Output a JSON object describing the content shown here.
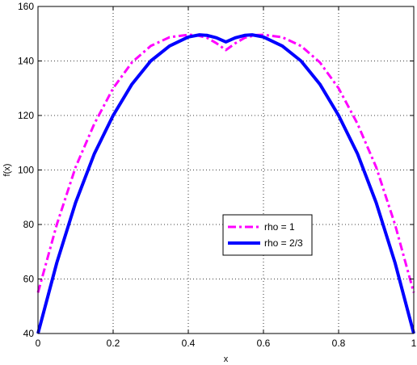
{
  "chart_data": {
    "type": "line",
    "title": "",
    "xlabel": "x",
    "ylabel": "f(x)",
    "xlim": [
      0,
      1
    ],
    "ylim": [
      40,
      160
    ],
    "xticks": [
      "0",
      "0.2",
      "0.4",
      "0.6",
      "0.8",
      "1"
    ],
    "yticks": [
      "40",
      "60",
      "80",
      "100",
      "120",
      "140",
      "160"
    ],
    "grid": true,
    "legend_position": "lower-center-right",
    "series": [
      {
        "name": "rho = 1",
        "color": "#ff00ff",
        "style": "dash-dot",
        "x": [
          0,
          0.05,
          0.1,
          0.15,
          0.2,
          0.25,
          0.3,
          0.35,
          0.4,
          0.42,
          0.45,
          0.475,
          0.5,
          0.525,
          0.55,
          0.58,
          0.6,
          0.65,
          0.7,
          0.75,
          0.8,
          0.85,
          0.9,
          0.95,
          1
        ],
        "y": [
          55,
          80,
          101,
          117,
          130,
          139.5,
          145.5,
          148.7,
          149.6,
          149.5,
          148.5,
          146.5,
          144,
          146.5,
          148.5,
          149.5,
          149.6,
          148.7,
          145.5,
          139.5,
          130,
          117,
          101,
          80,
          55
        ]
      },
      {
        "name": "rho = 2/3",
        "color": "#0000ff",
        "style": "solid",
        "x": [
          0,
          0.05,
          0.1,
          0.15,
          0.2,
          0.25,
          0.3,
          0.35,
          0.4,
          0.43,
          0.45,
          0.475,
          0.5,
          0.525,
          0.55,
          0.57,
          0.6,
          0.65,
          0.7,
          0.75,
          0.8,
          0.85,
          0.9,
          0.95,
          1
        ],
        "y": [
          40,
          66,
          88,
          106,
          120,
          131.5,
          140,
          145.5,
          148.8,
          149.6,
          149.4,
          148.5,
          147,
          148.5,
          149.4,
          149.6,
          148.8,
          145.5,
          140,
          131.5,
          120,
          106,
          88,
          66,
          40
        ]
      }
    ]
  }
}
